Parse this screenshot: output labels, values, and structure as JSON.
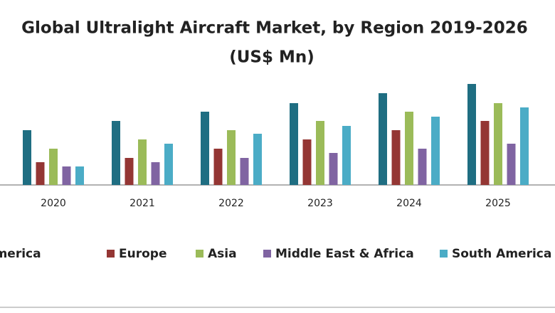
{
  "chart_data": {
    "type": "bar",
    "title": "Global Ultralight Aircraft Market, by Region 2019-2026",
    "subtitle": "(US$ Mn)",
    "categories": [
      "2020",
      "2021",
      "2022",
      "2023",
      "2024",
      "2025"
    ],
    "series": [
      {
        "name": "North America",
        "color": "#1f6e82",
        "values": [
          77,
          90,
          103,
          115,
          129,
          142
        ]
      },
      {
        "name": "Europe",
        "color": "#943634",
        "values": [
          32,
          38,
          51,
          64,
          77,
          90
        ]
      },
      {
        "name": "Asia",
        "color": "#9bbb59",
        "values": [
          51,
          64,
          77,
          90,
          103,
          115
        ]
      },
      {
        "name": "Middle East & Africa",
        "color": "#8064a2",
        "values": [
          26,
          32,
          38,
          45,
          51,
          58
        ]
      },
      {
        "name": "South America",
        "color": "#4bacc6",
        "values": [
          26,
          58,
          72,
          83,
          96,
          109
        ]
      }
    ],
    "ylim": [
      0,
      160
    ]
  }
}
